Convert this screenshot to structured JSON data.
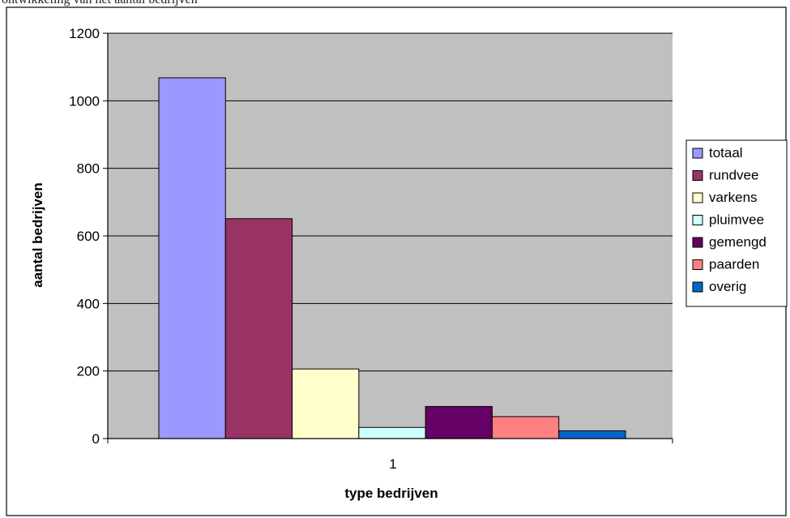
{
  "caption_fragment": "ontwikkeling van het aantal bedrijven",
  "chart_data": {
    "type": "bar",
    "categories": [
      "1"
    ],
    "series": [
      {
        "name": "totaal",
        "values": [
          1068
        ],
        "color": "#9999ff"
      },
      {
        "name": "rundvee",
        "values": [
          651
        ],
        "color": "#993366"
      },
      {
        "name": "varkens",
        "values": [
          206
        ],
        "color": "#ffffcc"
      },
      {
        "name": "pluimvee",
        "values": [
          33
        ],
        "color": "#ccffff"
      },
      {
        "name": "gemengd",
        "values": [
          95
        ],
        "color": "#660066"
      },
      {
        "name": "paarden",
        "values": [
          65
        ],
        "color": "#ff8080"
      },
      {
        "name": "overig",
        "values": [
          23
        ],
        "color": "#0066cc"
      }
    ],
    "title": "",
    "xlabel": "type bedrijven",
    "ylabel": "aantal bedrijven",
    "ylim": [
      0,
      1200
    ],
    "yticks": [
      "0",
      "200",
      "400",
      "600",
      "800",
      "1000",
      "1200"
    ],
    "grid": true,
    "legend_position": "right",
    "plot_background": "#c0c0c0"
  }
}
